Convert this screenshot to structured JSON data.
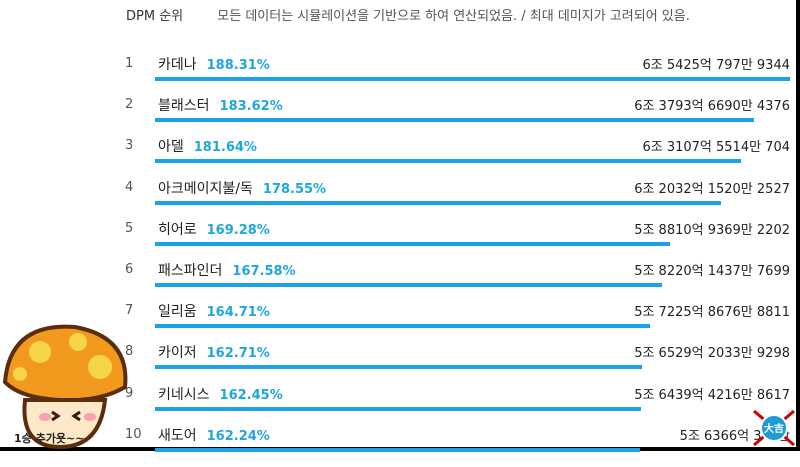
{
  "header": {
    "title": "DPM 순위",
    "note": "모든 데이터는 시뮬레이션을 기반으로 하여 연산되었음. / 최대 데미지가 고려되어 있음."
  },
  "colors": {
    "bar": "#1aa3e8",
    "percent": "#1fa6e0"
  },
  "chart_data": {
    "type": "bar",
    "orientation": "horizontal",
    "categories": [
      "카데나",
      "블래스터",
      "아델",
      "아크메이지불/독",
      "히어로",
      "패스파인더",
      "일리움",
      "카이저",
      "키네시스",
      "새도어"
    ],
    "ranks": [
      "1",
      "2",
      "3",
      "4",
      "5",
      "6",
      "7",
      "8",
      "9",
      "10"
    ],
    "percent_labels": [
      "188.31%",
      "183.62%",
      "181.64%",
      "178.55%",
      "169.28%",
      "167.58%",
      "164.71%",
      "162.71%",
      "162.45%",
      "162.24%"
    ],
    "value_labels": [
      "6조 5425억 797만 9344",
      "6조 3793억 6690만 4376",
      "6조 3107억 5514만 704",
      "6조 2032억 1520만 2527",
      "5조 8810억 9369만 2202",
      "5조 8220억 1437만 7699",
      "5조 7225억 8676만 8811",
      "5조 6529억 2033만 9298",
      "5조 6439억 4216만 8617",
      "5조 6366억 342만"
    ],
    "values": [
      188.31,
      183.62,
      181.64,
      178.55,
      169.28,
      167.58,
      164.71,
      162.71,
      162.45,
      162.24
    ],
    "max": 188.31
  },
  "mascot": {
    "icon": "orange-mushroom-icon",
    "caption": "1승 추가욧~~"
  },
  "badge": {
    "icon": "watermark-badge-icon",
    "text": "大吉"
  }
}
